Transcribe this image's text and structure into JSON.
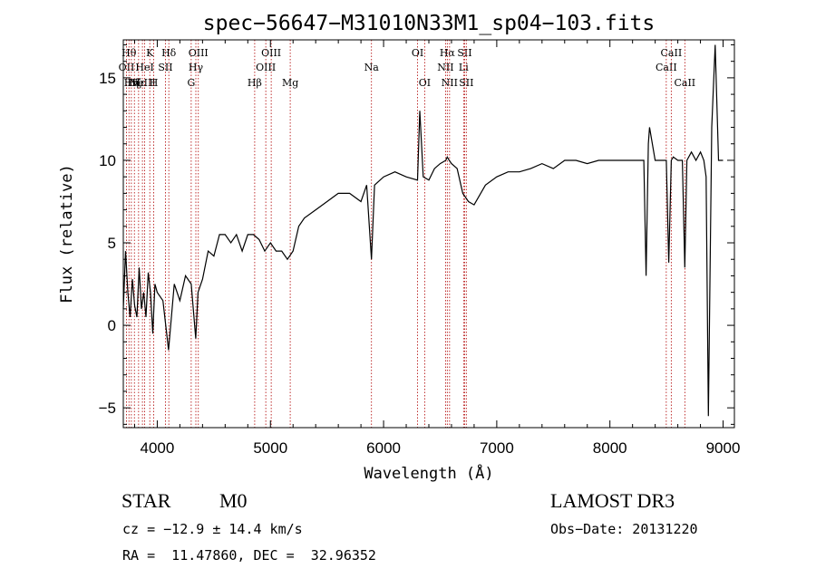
{
  "chart_data": {
    "type": "line",
    "title": "spec−56647−M31010N33M1_sp04−103.fits",
    "xlabel": "Wavelength (Å)",
    "ylabel": "Flux (relative)",
    "xlim": [
      3700,
      9100
    ],
    "ylim": [
      -6.2,
      17.3
    ],
    "xticks": [
      4000,
      5000,
      6000,
      7000,
      8000,
      9000
    ],
    "yticks": [
      -5,
      0,
      5,
      10,
      15
    ],
    "grid": false,
    "series": [
      {
        "x": [
          3700,
          3720,
          3740,
          3760,
          3780,
          3800,
          3820,
          3840,
          3860,
          3880,
          3900,
          3920,
          3940,
          3960,
          3980,
          4000,
          4050,
          4100,
          4150,
          4200,
          4250,
          4300,
          4340,
          4360,
          4400,
          4450,
          4500,
          4550,
          4600,
          4650,
          4700,
          4750,
          4800,
          4850,
          4900,
          4950,
          5000,
          5050,
          5100,
          5150,
          5200,
          5250,
          5300,
          5400,
          5500,
          5600,
          5700,
          5800,
          5850,
          5893,
          5920,
          6000,
          6100,
          6200,
          6300,
          6320,
          6350,
          6400,
          6450,
          6500,
          6550,
          6563,
          6580,
          6600,
          6650,
          6700,
          6750,
          6800,
          6900,
          7000,
          7100,
          7200,
          7300,
          7400,
          7500,
          7600,
          7700,
          7800,
          7900,
          8000,
          8100,
          8200,
          8300,
          8320,
          8340,
          8350,
          8400,
          8450,
          8498,
          8520,
          8542,
          8560,
          8600,
          8640,
          8662,
          8680,
          8720,
          8760,
          8800,
          8830,
          8850,
          8870,
          8900,
          8930,
          8960,
          9000
        ],
        "values": [
          1.0,
          4.5,
          2.0,
          0.5,
          2.8,
          1.2,
          0.5,
          3.5,
          1.0,
          2.0,
          0.5,
          3.2,
          2.0,
          -0.5,
          2.5,
          2.0,
          1.5,
          -1.5,
          2.5,
          1.5,
          3.0,
          2.5,
          -0.8,
          2.0,
          2.8,
          4.5,
          4.2,
          5.5,
          5.5,
          5.0,
          5.5,
          4.5,
          5.5,
          5.5,
          5.2,
          4.5,
          5.0,
          4.5,
          4.5,
          4.0,
          4.5,
          6.0,
          6.5,
          7.0,
          7.5,
          8.0,
          8.0,
          7.5,
          8.5,
          4.0,
          8.5,
          9.0,
          9.3,
          9.0,
          8.8,
          13.0,
          9.0,
          8.8,
          9.5,
          9.8,
          10.0,
          10.2,
          10.0,
          9.8,
          9.5,
          8.0,
          7.5,
          7.3,
          8.5,
          9.0,
          9.3,
          9.3,
          9.5,
          9.8,
          9.5,
          10.0,
          10.0,
          9.8,
          10.0,
          10.0,
          10.0,
          10.0,
          10.0,
          3.0,
          11.0,
          12.0,
          10.0,
          10.0,
          10.0,
          3.8,
          10.0,
          10.2,
          10.0,
          10.0,
          3.5,
          10.0,
          10.5,
          10.0,
          10.5,
          10.0,
          9.0,
          -5.5,
          12.0,
          17.0,
          10.0,
          10.0
        ]
      }
    ],
    "lines": [
      {
        "wl": 3728,
        "label": "OII",
        "row": 2
      },
      {
        "wl": 3750,
        "label": "Hθ",
        "row": 1
      },
      {
        "wl": 3771,
        "label": "Hη",
        "row": 3
      },
      {
        "wl": 3798,
        "label": "Hζ",
        "row": 3
      },
      {
        "wl": 3835,
        "label": "Hε",
        "row": 3
      },
      {
        "wl": 3869,
        "label": "NeIII",
        "row": 3
      },
      {
        "wl": 3889,
        "label": "HeI",
        "row": 2
      },
      {
        "wl": 3934,
        "label": "K",
        "row": 1
      },
      {
        "wl": 3969,
        "label": "H",
        "row": 3
      },
      {
        "wl": 4072,
        "label": "SII",
        "row": 2
      },
      {
        "wl": 4102,
        "label": "Hδ",
        "row": 1
      },
      {
        "wl": 4300,
        "label": "G",
        "row": 3
      },
      {
        "wl": 4341,
        "label": "Hγ",
        "row": 2
      },
      {
        "wl": 4363,
        "label": "OIII",
        "row": 1
      },
      {
        "wl": 4861,
        "label": "Hβ",
        "row": 3
      },
      {
        "wl": 4959,
        "label": "OIII",
        "row": 2
      },
      {
        "wl": 5007,
        "label": "OIII",
        "row": 1
      },
      {
        "wl": 5175,
        "label": "Mg",
        "row": 3
      },
      {
        "wl": 5893,
        "label": "Na",
        "row": 2
      },
      {
        "wl": 6300,
        "label": "OI",
        "row": 1
      },
      {
        "wl": 6363,
        "label": "OI",
        "row": 3
      },
      {
        "wl": 6548,
        "label": "NII",
        "row": 2
      },
      {
        "wl": 6563,
        "label": "Hα",
        "row": 1
      },
      {
        "wl": 6583,
        "label": "NII",
        "row": 3
      },
      {
        "wl": 6707,
        "label": "Li",
        "row": 2
      },
      {
        "wl": 6716,
        "label": "SII",
        "row": 1
      },
      {
        "wl": 6731,
        "label": "SII",
        "row": 3
      },
      {
        "wl": 8498,
        "label": "CaII",
        "row": 2
      },
      {
        "wl": 8542,
        "label": "CaII",
        "row": 1
      },
      {
        "wl": 8662,
        "label": "CaII",
        "row": 3
      }
    ]
  },
  "info": {
    "class_label": "STAR",
    "subclass": "M0",
    "survey": "LAMOST DR3",
    "redshift": "cz = −12.9 ± 14.4 km/s",
    "obs_date": "Obs−Date: 20131220",
    "coords": "RA =  11.47860, DEC =  32.96352"
  }
}
